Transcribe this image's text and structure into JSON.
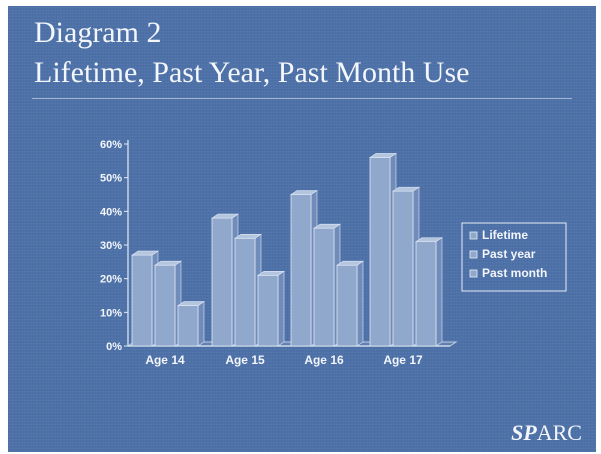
{
  "slide": {
    "title_line1": "Diagram 2",
    "title_line2": "Lifetime, Past Year, Past Month Use",
    "brand_sp": "SP",
    "brand_rest": "ARC"
  },
  "colors": {
    "background": "#4d71a8",
    "bar_front": "#8fa8cc",
    "bar_side": "#6f8cba",
    "bar_top": "#b4c6df",
    "text": "#f3f6fb"
  },
  "chart_data": {
    "type": "bar",
    "categories": [
      "Age 14",
      "Age 15",
      "Age 16",
      "Age 17"
    ],
    "series": [
      {
        "name": "Lifetime",
        "values": [
          27,
          38,
          45,
          56
        ]
      },
      {
        "name": "Past year",
        "values": [
          24,
          32,
          35,
          46
        ]
      },
      {
        "name": "Past month",
        "values": [
          12,
          21,
          24,
          31
        ]
      }
    ],
    "yticks": [
      "0%",
      "10%",
      "20%",
      "30%",
      "40%",
      "50%",
      "60%"
    ],
    "ylim": [
      0,
      60
    ],
    "legend_position": "right",
    "grid": false
  }
}
